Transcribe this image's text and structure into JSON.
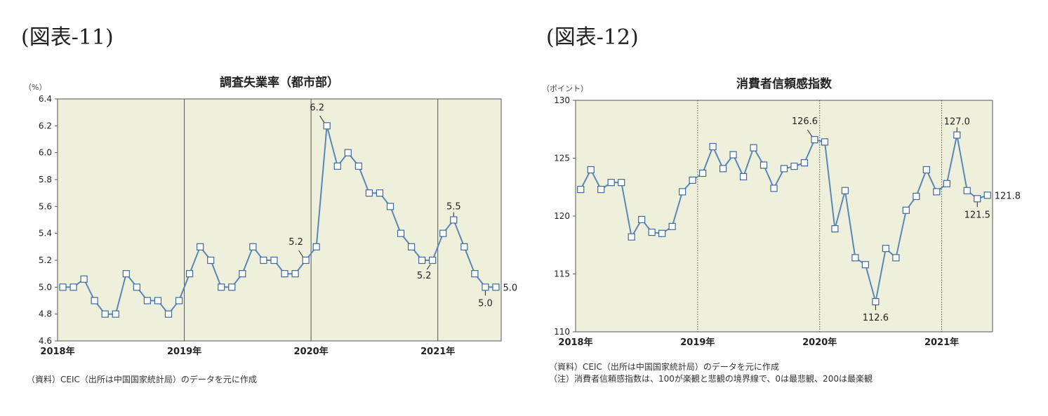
{
  "figures": [
    {
      "label": "(図表-11)"
    },
    {
      "label": "(図表-12)"
    }
  ],
  "colors": {
    "plot_bg": "#eef0dc",
    "line": "#5b87b8",
    "marker_edge": "#3e6a9c",
    "marker_fill": "#ffffff"
  },
  "chart_data": [
    {
      "type": "line",
      "title": "調査失業率（都市部）",
      "unit": "（%）",
      "ylim": [
        4.6,
        6.4
      ],
      "yticks": [
        "4.6",
        "4.8",
        "5.0",
        "5.2",
        "5.4",
        "5.6",
        "5.8",
        "6.0",
        "6.2",
        "6.4"
      ],
      "x_start": "2018-01",
      "x_end": "2021-06",
      "year_labels": [
        "2018年",
        "2019年",
        "2020年",
        "2021年"
      ],
      "year_separator": "solid",
      "grid": false,
      "series": [
        {
          "values": [
            5.0,
            5.0,
            5.06,
            4.9,
            4.8,
            4.8,
            5.1,
            5.0,
            4.9,
            4.9,
            4.8,
            4.9,
            5.1,
            5.3,
            5.2,
            5.0,
            5.0,
            5.1,
            5.3,
            5.2,
            5.2,
            5.1,
            5.1,
            5.2,
            5.3,
            6.2,
            5.9,
            6.0,
            5.9,
            5.7,
            5.7,
            5.6,
            5.4,
            5.3,
            5.2,
            5.2,
            5.4,
            5.5,
            5.3,
            5.1,
            5.0,
            5.0
          ]
        }
      ],
      "annotations": [
        {
          "index": 23,
          "text": "5.2",
          "pos": "above-left"
        },
        {
          "index": 25,
          "text": "6.2",
          "pos": "above-left"
        },
        {
          "index": 35,
          "text": "5.2",
          "pos": "below-left"
        },
        {
          "index": 37,
          "text": "5.5",
          "pos": "above"
        },
        {
          "index": 40,
          "text": "5.0",
          "pos": "below"
        },
        {
          "index": 41,
          "text": "5.0",
          "pos": "right"
        }
      ],
      "notes": [
        "（資料）CEIC（出所は中国国家統計局）のデータを元に作成"
      ]
    },
    {
      "type": "line",
      "title": "消費者信頼感指数",
      "unit": "（ポイント）",
      "ylim": [
        110,
        130
      ],
      "yticks": [
        "110",
        "115",
        "120",
        "125",
        "130"
      ],
      "x_start": "2018-01",
      "x_end": "2021-05",
      "year_labels": [
        "2018年",
        "2019年",
        "2020年",
        "2021年"
      ],
      "year_separator": "dotted",
      "grid": false,
      "series": [
        {
          "values": [
            122.3,
            124.0,
            122.3,
            122.9,
            122.9,
            118.2,
            119.7,
            118.6,
            118.5,
            119.1,
            122.1,
            123.1,
            123.7,
            126.0,
            124.1,
            125.3,
            123.4,
            125.9,
            124.4,
            122.4,
            124.1,
            124.3,
            124.6,
            126.6,
            126.4,
            118.9,
            122.2,
            116.4,
            115.8,
            112.6,
            117.2,
            116.4,
            120.5,
            121.7,
            124.0,
            122.1,
            122.8,
            127.0,
            122.2,
            121.5,
            121.8
          ]
        }
      ],
      "annotations": [
        {
          "index": 23,
          "text": "126.6",
          "pos": "above-left"
        },
        {
          "index": 29,
          "text": "112.6",
          "pos": "below"
        },
        {
          "index": 37,
          "text": "127.0",
          "pos": "above"
        },
        {
          "index": 39,
          "text": "121.5",
          "pos": "below"
        },
        {
          "index": 40,
          "text": "121.8",
          "pos": "right"
        }
      ],
      "notes": [
        "（資料）CEIC（出所は中国国家統計局）のデータを元に作成",
        "（注）消費者信頼感指数は、100が楽観と悲観の境界線で、0は最悲観、200は最楽観"
      ]
    }
  ]
}
